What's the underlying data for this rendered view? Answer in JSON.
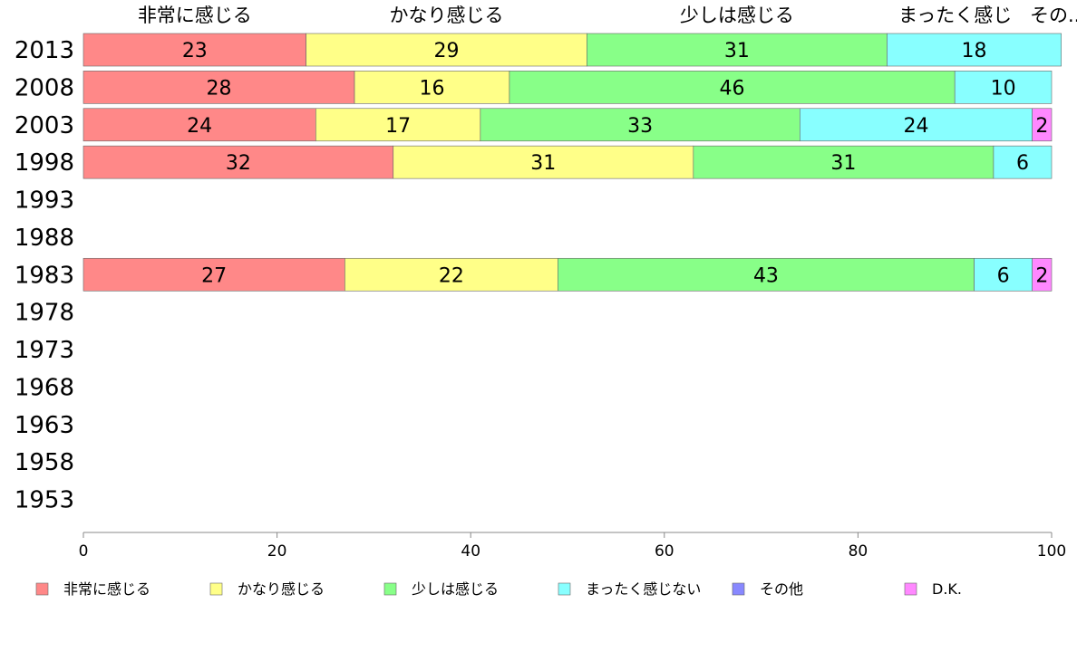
{
  "chart_data": {
    "type": "bar",
    "orientation": "horizontal",
    "stacked": true,
    "categories": [
      "2013",
      "2008",
      "2003",
      "1998",
      "1993",
      "1988",
      "1983",
      "1978",
      "1973",
      "1968",
      "1963",
      "1958",
      "1953"
    ],
    "series": [
      {
        "name": "非常に感じる",
        "color": "#ff8888",
        "values": [
          23,
          28,
          24,
          32,
          null,
          null,
          27,
          null,
          null,
          null,
          null,
          null,
          null
        ]
      },
      {
        "name": "かなり感じる",
        "color": "#ffff88",
        "values": [
          29,
          16,
          17,
          31,
          null,
          null,
          22,
          null,
          null,
          null,
          null,
          null,
          null
        ]
      },
      {
        "name": "少しは感じる",
        "color": "#88ff88",
        "values": [
          31,
          46,
          33,
          31,
          null,
          null,
          43,
          null,
          null,
          null,
          null,
          null,
          null
        ]
      },
      {
        "name": "まったく感じない",
        "color": "#88ffff",
        "values": [
          18,
          10,
          24,
          6,
          null,
          null,
          6,
          null,
          null,
          null,
          null,
          null,
          null
        ]
      },
      {
        "name": "その他",
        "color": "#8888ff",
        "values": [
          0,
          0,
          0,
          0,
          null,
          null,
          0,
          null,
          null,
          null,
          null,
          null,
          null
        ]
      },
      {
        "name": "D.K.",
        "color": "#ff88ff",
        "values": [
          0,
          0,
          2,
          0,
          null,
          null,
          2,
          null,
          null,
          null,
          null,
          null,
          null
        ]
      }
    ],
    "top_labels": [
      "非常に感じる",
      "かなり感じる",
      "少しは感じる",
      "まったく感じない",
      "その他"
    ],
    "top_label_overlap": "まったく感じ",
    "top_label_truncated": "その..",
    "xlim": [
      0,
      100
    ],
    "xticks": [
      0,
      20,
      40,
      60,
      80,
      100
    ],
    "grid": false,
    "legend_position": "bottom"
  }
}
